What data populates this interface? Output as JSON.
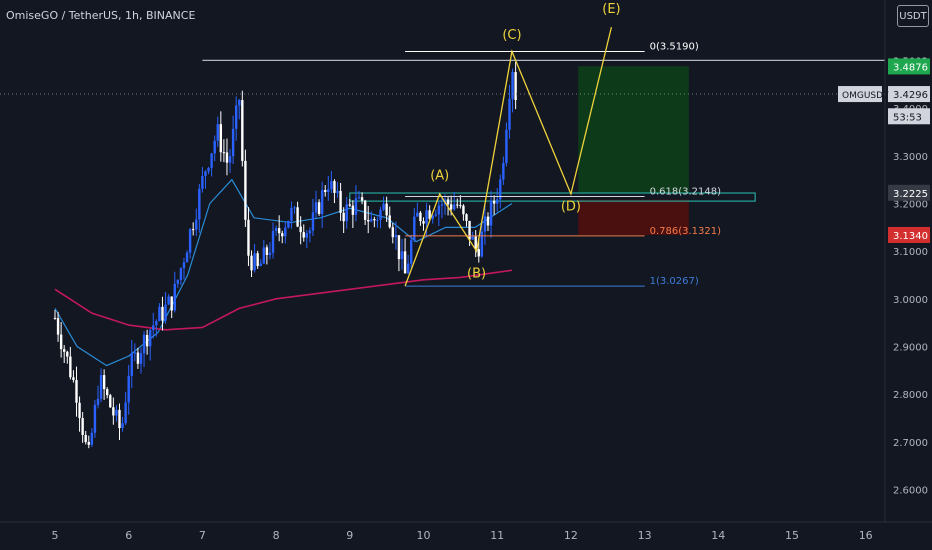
{
  "header": {
    "symbol": "OmiseGO / TetherUS, 1h, BINANCE",
    "currency_button": "USDT"
  },
  "chart_data": {
    "type": "candlestick",
    "title": "OmiseGO / TetherUS, 1h, BINANCE",
    "yaxis_ticks": [
      2.6,
      2.7,
      2.8,
      2.9,
      3.0,
      3.1,
      3.2,
      3.3,
      3.4,
      3.5
    ],
    "ylim": [
      2.555,
      3.56
    ],
    "xaxis_ticks": [
      "5",
      "6",
      "7",
      "8",
      "9",
      "10",
      "11",
      "12",
      "13",
      "14",
      "15",
      "16"
    ],
    "price_labels": [
      {
        "name": "high",
        "text": "3.5002",
        "value": 3.5002,
        "color": "#d1d4dc",
        "bg": "#131722"
      },
      {
        "name": "last",
        "text": "3.4876",
        "value": 3.4876,
        "color": "#ffffff",
        "bg": "#1fa74f"
      },
      {
        "name": "close",
        "text": "3.4296",
        "value": 3.4296,
        "color": "#131722",
        "bg": "#d1d4dc"
      },
      {
        "name": "countdown",
        "text": "53:53",
        "value": 3.383,
        "color": "#131722",
        "bg": "#d1d4dc"
      },
      {
        "name": "zone",
        "text": "3.2225",
        "value": 3.2225,
        "color": "#ffffff",
        "bg": "#363a45"
      },
      {
        "name": "stop",
        "text": "3.1340",
        "value": 3.134,
        "color": "#ffffff",
        "bg": "#d32f2f"
      }
    ],
    "symbol_tag": "OMGUSDT",
    "fib_levels": [
      {
        "label": "0(3.5190)",
        "value": 3.519,
        "color": "#ffffff"
      },
      {
        "label": "0.618(3.2148)",
        "value": 3.2148,
        "color": "#d1d4dc"
      },
      {
        "label": "0.786(3.1321)",
        "value": 3.1321,
        "color": "#f57c4a"
      },
      {
        "label": "1(3.0267)",
        "value": 3.0267,
        "color": "#3d7cd8"
      }
    ],
    "wave_labels": [
      "(A)",
      "(B)",
      "(C)",
      "(D)",
      "(E)"
    ],
    "wave_path": [
      {
        "day": 9.75,
        "price": 3.027
      },
      {
        "day": 10.22,
        "price": 3.22
      },
      {
        "day": 10.72,
        "price": 3.1
      },
      {
        "day": 11.2,
        "price": 3.519
      },
      {
        "day": 12.0,
        "price": 3.22
      },
      {
        "day": 12.55,
        "price": 3.57
      }
    ],
    "horizontal_line": {
      "value": 3.5002,
      "color": "#b2b5be"
    },
    "dotted_line": {
      "value": 3.4296
    },
    "colors": {
      "up": "#2962ff",
      "down": "#ffffff",
      "ma_fast": "#2a8cd6",
      "ma_slow": "#c2185b",
      "target_zone": "#0d3b1a",
      "stop_zone": "#4a0f0f",
      "zone_box": "#26a69a"
    },
    "grid": false
  }
}
